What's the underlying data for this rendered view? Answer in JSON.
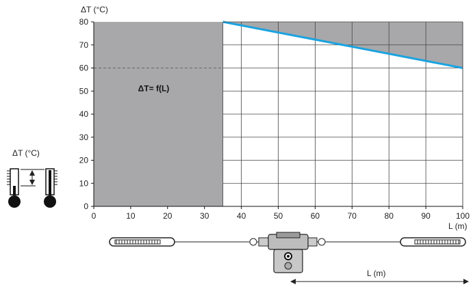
{
  "chart_data": {
    "type": "line",
    "ylabel": "ΔT (°C)",
    "xlabel": "L (m)",
    "xlim": [
      0,
      100
    ],
    "ylim": [
      0,
      80
    ],
    "x_ticks": [
      0,
      10,
      20,
      30,
      40,
      50,
      60,
      70,
      80,
      90,
      100
    ],
    "y_ticks": [
      0,
      10,
      20,
      30,
      40,
      50,
      60,
      70,
      80
    ],
    "series": [
      {
        "x": [
          35,
          100
        ],
        "values": [
          80,
          60
        ]
      }
    ],
    "excluded_region_x": [
      0,
      35
    ],
    "reference_line_y": 60,
    "annotation": "ΔT= f(L)",
    "grid": true,
    "colors": {
      "line": "#1aa3e0",
      "shaded": "#a8a8aa",
      "grid": "#444444"
    }
  },
  "thermometer_label": "ΔT (°C)",
  "cable_label": "L (m)"
}
